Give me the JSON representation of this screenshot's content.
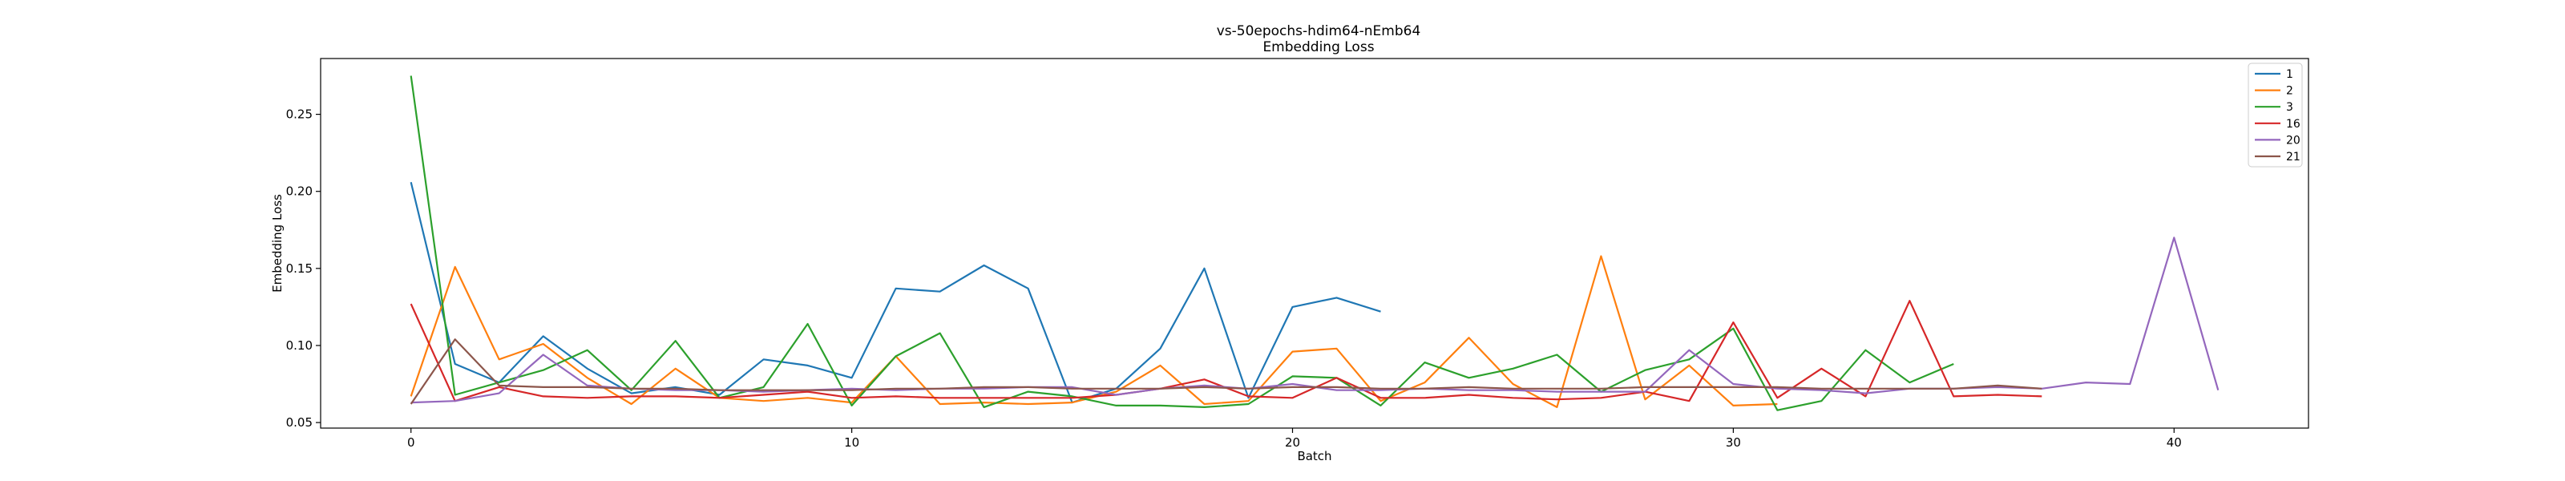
{
  "chart_data": {
    "type": "line",
    "title": "vs-50epochs-hdim64-nEmb64",
    "subtitle": "Embedding Loss",
    "xlabel": "Batch",
    "ylabel": "Embedding Loss",
    "xlim": [
      -2.05,
      43.05
    ],
    "ylim": [
      0.0464,
      0.2862
    ],
    "xticks": [
      0,
      10,
      20,
      30,
      40
    ],
    "yticks": [
      0.05,
      0.1,
      0.15,
      0.2,
      0.25
    ],
    "ytick_labels": [
      "0.05",
      "0.10",
      "0.15",
      "0.20",
      "0.25"
    ],
    "grid": false,
    "legend_position": "top-right",
    "series": [
      {
        "name": "1",
        "color": "#1f77b4",
        "values": [
          0.206,
          0.088,
          0.076,
          0.106,
          0.085,
          0.069,
          0.073,
          0.068,
          0.091,
          0.087,
          0.079,
          0.137,
          0.135,
          0.152,
          0.137,
          0.063,
          0.072,
          0.098,
          0.15,
          0.066,
          0.125,
          0.131,
          0.122
        ]
      },
      {
        "name": "2",
        "color": "#ff7f0e",
        "values": [
          0.067,
          0.151,
          0.091,
          0.101,
          0.079,
          0.062,
          0.085,
          0.066,
          0.064,
          0.066,
          0.063,
          0.093,
          0.062,
          0.063,
          0.062,
          0.063,
          0.07,
          0.087,
          0.062,
          0.064,
          0.096,
          0.098,
          0.064,
          0.076,
          0.105,
          0.075,
          0.06,
          0.158,
          0.065,
          0.087,
          0.061,
          0.062
        ]
      },
      {
        "name": "3",
        "color": "#2ca02c",
        "values": [
          0.275,
          0.068,
          0.076,
          0.084,
          0.097,
          0.071,
          0.103,
          0.066,
          0.073,
          0.114,
          0.061,
          0.093,
          0.108,
          0.06,
          0.07,
          0.067,
          0.061,
          0.061,
          0.06,
          0.062,
          0.08,
          0.079,
          0.061,
          0.089,
          0.079,
          0.085,
          0.094,
          0.07,
          0.084,
          0.091,
          0.111,
          0.058,
          0.064,
          0.097,
          0.076,
          0.088
        ]
      },
      {
        "name": "16",
        "color": "#d62728",
        "values": [
          0.127,
          0.064,
          0.073,
          0.067,
          0.066,
          0.067,
          0.067,
          0.066,
          0.068,
          0.07,
          0.066,
          0.067,
          0.066,
          0.066,
          0.066,
          0.066,
          0.068,
          0.072,
          0.078,
          0.067,
          0.066,
          0.079,
          0.066,
          0.066,
          0.068,
          0.066,
          0.065,
          0.066,
          0.07,
          0.064,
          0.115,
          0.066,
          0.085,
          0.067,
          0.129,
          0.067,
          0.068,
          0.067
        ]
      },
      {
        "name": "20",
        "color": "#9467bd",
        "values": [
          0.063,
          0.064,
          0.069,
          0.094,
          0.074,
          0.072,
          0.071,
          0.071,
          0.07,
          0.071,
          0.072,
          0.071,
          0.072,
          0.072,
          0.073,
          0.073,
          0.068,
          0.072,
          0.074,
          0.072,
          0.075,
          0.071,
          0.071,
          0.072,
          0.071,
          0.071,
          0.07,
          0.07,
          0.07,
          0.097,
          0.075,
          0.072,
          0.071,
          0.069,
          0.072,
          0.072,
          0.073,
          0.072,
          0.076,
          0.075,
          0.17,
          0.071
        ]
      },
      {
        "name": "21",
        "color": "#8c564b",
        "values": [
          0.062,
          0.104,
          0.074,
          0.073,
          0.073,
          0.072,
          0.072,
          0.071,
          0.071,
          0.071,
          0.071,
          0.072,
          0.072,
          0.073,
          0.073,
          0.072,
          0.072,
          0.072,
          0.073,
          0.072,
          0.073,
          0.073,
          0.072,
          0.072,
          0.073,
          0.072,
          0.072,
          0.072,
          0.073,
          0.073,
          0.073,
          0.073,
          0.072,
          0.072,
          0.072,
          0.072,
          0.074,
          0.072
        ]
      }
    ]
  }
}
